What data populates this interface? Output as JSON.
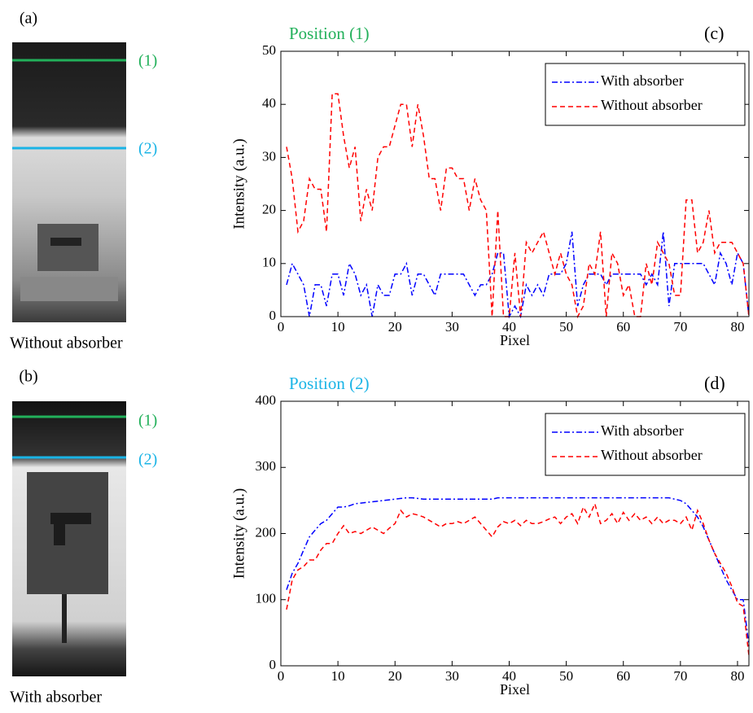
{
  "image_panels": [
    {
      "label": "(a)",
      "markers": [
        "(1)",
        "(2)"
      ],
      "caption": "Without absorber"
    },
    {
      "label": "(b)",
      "markers": [
        "(1)",
        "(2)"
      ],
      "caption": "With absorber"
    }
  ],
  "chart_data": [
    {
      "type": "line",
      "title": "Position (1)",
      "title_color": "#22b05a",
      "panel_label": "(c)",
      "xlabel": "Pixel",
      "ylabel": "Intensity (a.u.)",
      "x": [
        1,
        2,
        3,
        4,
        5,
        6,
        7,
        8,
        9,
        10,
        11,
        12,
        13,
        14,
        15,
        16,
        17,
        18,
        19,
        20,
        21,
        22,
        23,
        24,
        25,
        26,
        27,
        28,
        29,
        30,
        31,
        32,
        33,
        34,
        35,
        36,
        37,
        38,
        39,
        40,
        41,
        42,
        43,
        44,
        45,
        46,
        47,
        48,
        49,
        50,
        51,
        52,
        53,
        54,
        55,
        56,
        57,
        58,
        59,
        60,
        61,
        62,
        63,
        64,
        65,
        66,
        67,
        68,
        69,
        70,
        71,
        72,
        73,
        74,
        75,
        76,
        77,
        78,
        79,
        80,
        81,
        82
      ],
      "series": [
        {
          "name": "With absorber",
          "color": "#0000ff",
          "linestyle": "-.",
          "values": [
            6,
            10,
            8,
            6,
            0,
            6,
            6,
            2,
            8,
            8,
            4,
            10,
            8,
            4,
            6,
            0,
            6,
            4,
            4,
            8,
            8,
            10,
            4,
            8,
            8,
            6,
            4,
            8,
            8,
            8,
            8,
            8,
            6,
            4,
            6,
            6,
            8,
            12,
            12,
            0,
            2,
            0,
            6,
            4,
            6,
            4,
            8,
            8,
            8,
            10,
            16,
            2,
            6,
            8,
            8,
            8,
            6,
            8,
            8,
            8,
            8,
            8,
            8,
            6,
            8,
            6,
            16,
            2,
            10,
            10,
            10,
            10,
            10,
            10,
            8,
            6,
            12,
            10,
            6,
            12,
            10,
            0
          ]
        },
        {
          "name": "Without absorber",
          "color": "#ff0000",
          "linestyle": "--",
          "values": [
            32,
            26,
            16,
            18,
            26,
            24,
            24,
            16,
            42,
            42,
            34,
            28,
            32,
            18,
            24,
            20,
            30,
            32,
            32,
            36,
            40,
            40,
            32,
            40,
            34,
            26,
            26,
            20,
            28,
            28,
            26,
            26,
            20,
            26,
            22,
            20,
            0,
            20,
            0,
            0,
            12,
            0,
            14,
            12,
            14,
            16,
            12,
            8,
            12,
            8,
            6,
            0,
            2,
            10,
            8,
            16,
            0,
            12,
            10,
            4,
            6,
            0,
            0,
            10,
            6,
            14,
            12,
            10,
            4,
            4,
            22,
            22,
            12,
            14,
            20,
            12,
            14,
            14,
            14,
            12,
            10,
            0
          ]
        }
      ],
      "xlim": [
        0,
        82
      ],
      "xticks": [
        0,
        10,
        20,
        30,
        40,
        50,
        60,
        70,
        80
      ],
      "ylim": [
        0,
        50
      ],
      "yticks": [
        0,
        10,
        20,
        30,
        40,
        50
      ],
      "legend": "upper right"
    },
    {
      "type": "line",
      "title": "Position (2)",
      "title_color": "#1ab4e6",
      "panel_label": "(d)",
      "xlabel": "Pixel",
      "ylabel": "Intensity (a.u.)",
      "x": [
        1,
        2,
        3,
        4,
        5,
        6,
        7,
        8,
        9,
        10,
        11,
        12,
        13,
        14,
        15,
        16,
        17,
        18,
        19,
        20,
        21,
        22,
        23,
        24,
        25,
        26,
        27,
        28,
        29,
        30,
        31,
        32,
        33,
        34,
        35,
        36,
        37,
        38,
        39,
        40,
        41,
        42,
        43,
        44,
        45,
        46,
        47,
        48,
        49,
        50,
        51,
        52,
        53,
        54,
        55,
        56,
        57,
        58,
        59,
        60,
        61,
        62,
        63,
        64,
        65,
        66,
        67,
        68,
        69,
        70,
        71,
        72,
        73,
        74,
        75,
        76,
        77,
        78,
        79,
        80,
        81,
        82
      ],
      "series": [
        {
          "name": "With absorber",
          "color": "#0000ff",
          "linestyle": "-.",
          "values": [
            115,
            140,
            155,
            175,
            195,
            205,
            215,
            220,
            230,
            240,
            240,
            242,
            245,
            246,
            247,
            248,
            249,
            250,
            251,
            252,
            253,
            254,
            254,
            253,
            252,
            252,
            252,
            252,
            252,
            252,
            252,
            252,
            252,
            252,
            252,
            252,
            252,
            254,
            254,
            254,
            254,
            254,
            254,
            254,
            254,
            254,
            254,
            254,
            254,
            254,
            254,
            254,
            254,
            254,
            254,
            254,
            254,
            254,
            254,
            254,
            254,
            254,
            254,
            254,
            254,
            254,
            254,
            254,
            252,
            250,
            245,
            235,
            225,
            210,
            190,
            170,
            150,
            130,
            115,
            100,
            100,
            30
          ]
        },
        {
          "name": "Without absorber",
          "color": "#ff0000",
          "linestyle": "--",
          "values": [
            85,
            130,
            145,
            150,
            160,
            160,
            175,
            185,
            185,
            200,
            212,
            200,
            203,
            200,
            205,
            210,
            205,
            200,
            208,
            215,
            235,
            225,
            230,
            228,
            225,
            220,
            215,
            210,
            215,
            215,
            218,
            215,
            220,
            225,
            215,
            205,
            195,
            210,
            218,
            215,
            220,
            212,
            220,
            215,
            215,
            218,
            222,
            225,
            215,
            225,
            230,
            215,
            240,
            225,
            245,
            215,
            220,
            230,
            215,
            232,
            220,
            230,
            220,
            225,
            215,
            225,
            215,
            220,
            220,
            215,
            225,
            205,
            235,
            215,
            190,
            170,
            155,
            140,
            120,
            95,
            90,
            15
          ]
        }
      ],
      "xlim": [
        0,
        82
      ],
      "xticks": [
        0,
        10,
        20,
        30,
        40,
        50,
        60,
        70,
        80
      ],
      "ylim": [
        0,
        400
      ],
      "yticks": [
        0,
        100,
        200,
        300,
        400
      ],
      "legend": "upper right"
    }
  ]
}
